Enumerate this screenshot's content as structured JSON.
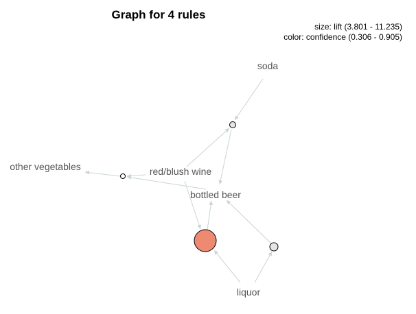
{
  "title": "Graph for 4 rules",
  "legend": {
    "size_line": "size: lift (3.801 - 11.235)",
    "color_line": "color: confidence (0.306 - 0.905)"
  },
  "colors": {
    "edge": "#c9d4d6",
    "high_confidence_rule": "#ef8a72",
    "low_confidence_rule": "#e5e5e5",
    "stroke": "#000000",
    "label": "#555555"
  },
  "items": [
    {
      "id": "soda",
      "label": "soda"
    },
    {
      "id": "other_vegetables",
      "label": "other vegetables"
    },
    {
      "id": "red_blush_wine",
      "label": "red/blush wine"
    },
    {
      "id": "bottled_beer",
      "label": "bottled beer"
    },
    {
      "id": "liquor",
      "label": "liquor"
    }
  ],
  "rules": [
    {
      "id": "rule_1",
      "lhs": [
        "soda",
        "red_blush_wine"
      ],
      "rhs": [
        "bottled_beer"
      ],
      "size": "small",
      "fill": "low"
    },
    {
      "id": "rule_2",
      "lhs": [
        "red_blush_wine",
        "bottled_beer"
      ],
      "rhs": [
        "other_vegetables"
      ],
      "size": "smallest",
      "fill": "white"
    },
    {
      "id": "rule_3",
      "lhs": [
        "liquor",
        "red_blush_wine"
      ],
      "rhs": [
        "bottled_beer"
      ],
      "size": "large",
      "fill": "high"
    },
    {
      "id": "rule_4",
      "lhs": [
        "liquor"
      ],
      "rhs": [
        "bottled_beer"
      ],
      "size": "medium",
      "fill": "low"
    }
  ]
}
